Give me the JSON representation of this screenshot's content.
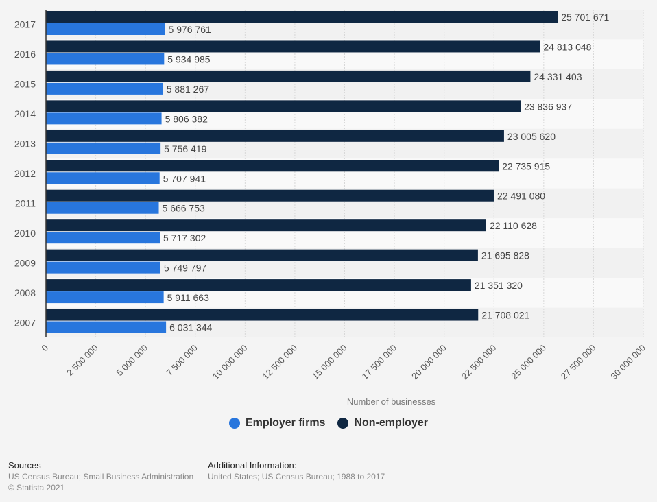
{
  "chart_data": {
    "type": "bar",
    "orientation": "horizontal",
    "title": "",
    "xlabel": "Number of businesses",
    "ylabel": "",
    "xlim": [
      0,
      30000000
    ],
    "x_ticks": [
      0,
      2500000,
      5000000,
      7500000,
      10000000,
      12500000,
      15000000,
      17500000,
      20000000,
      22500000,
      25000000,
      27500000,
      30000000
    ],
    "x_tick_labels": [
      "0",
      "2 500 000",
      "5 000 000",
      "7 500 000",
      "10 000 000",
      "12 500 000",
      "15 000 000",
      "17 500 000",
      "20 000 000",
      "22 500 000",
      "25 000 000",
      "27 500 000",
      "30 000 000"
    ],
    "categories": [
      "2017",
      "2016",
      "2015",
      "2014",
      "2013",
      "2012",
      "2011",
      "2010",
      "2009",
      "2008",
      "2007"
    ],
    "series": [
      {
        "name": "Non-employer",
        "color": "#0f2742",
        "values": [
          25701671,
          24813048,
          24331403,
          23836937,
          23005620,
          22735915,
          22491080,
          22110628,
          21695828,
          21351320,
          21708021
        ],
        "labels": [
          "25 701 671",
          "24 813 048",
          "24 331 403",
          "23 836 937",
          "23 005 620",
          "22 735 915",
          "22 491 080",
          "22 110 628",
          "21 695 828",
          "21 351 320",
          "21 708 021"
        ]
      },
      {
        "name": "Employer firms",
        "color": "#2876dd",
        "values": [
          5976761,
          5934985,
          5881267,
          5806382,
          5756419,
          5707941,
          5666753,
          5717302,
          5749797,
          5911663,
          6031344
        ],
        "labels": [
          "5 976 761",
          "5 934 985",
          "5 881 267",
          "5 806 382",
          "5 756 419",
          "5 707 941",
          "5 666 753",
          "5 717 302",
          "5 749 797",
          "5 911 663",
          "6 031 344"
        ]
      }
    ],
    "grid": true,
    "legend": "bottom-center",
    "legend_entries": [
      "Employer firms",
      "Non-employer"
    ]
  },
  "legend": {
    "items": [
      {
        "label": "Employer firms",
        "color": "#2876dd"
      },
      {
        "label": "Non-employer",
        "color": "#0f2742"
      }
    ]
  },
  "footer": {
    "sources_heading": "Sources",
    "sources_text": "US Census Bureau; Small Business Administration",
    "copyright": "© Statista 2021",
    "additional_heading": "Additional Information:",
    "additional_text": "United States; US Census Bureau; 1988 to 2017"
  }
}
